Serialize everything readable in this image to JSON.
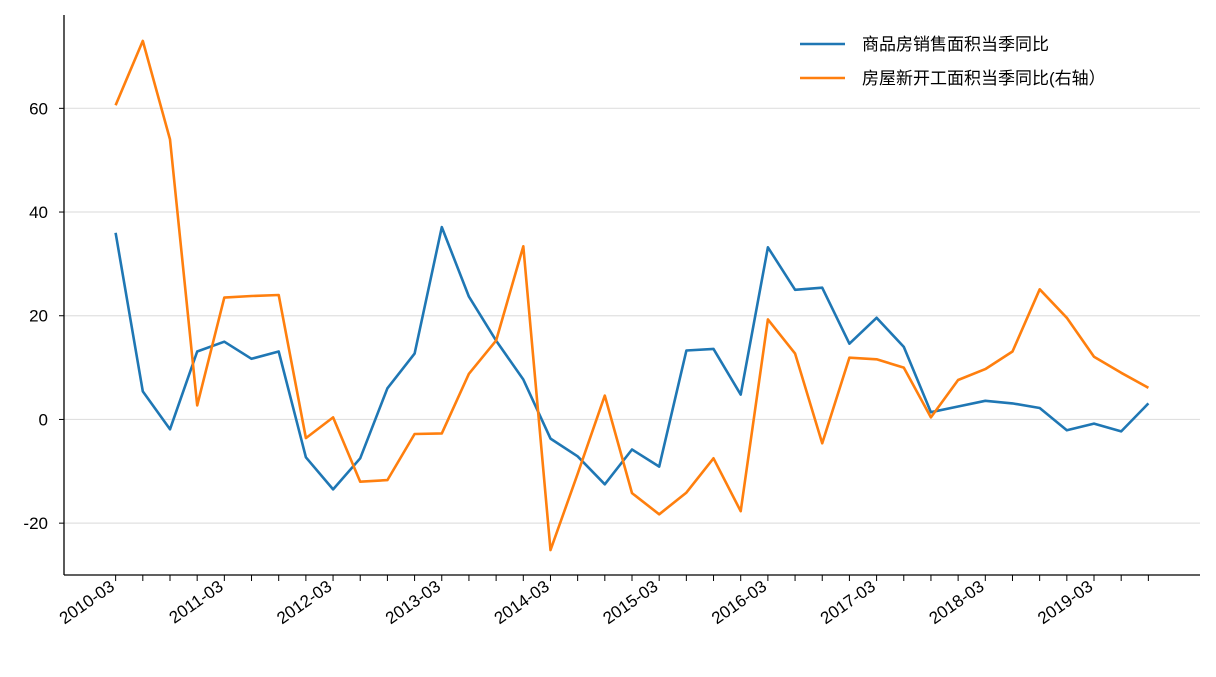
{
  "chart_data": {
    "type": "line",
    "categories": [
      "2010-03",
      null,
      null,
      null,
      "2011-03",
      null,
      null,
      null,
      "2012-03",
      null,
      null,
      null,
      "2013-03",
      null,
      null,
      null,
      "2014-03",
      null,
      null,
      null,
      "2015-03",
      null,
      null,
      null,
      "2016-03",
      null,
      null,
      null,
      "2017-03",
      null,
      null,
      null,
      "2018-03",
      null,
      null,
      null,
      "2019-03",
      null,
      null
    ],
    "series": [
      {
        "name": "商品房销售面积当季同比",
        "color": "#1f77b4",
        "values": [
          36,
          5.4,
          -1.9,
          13.1,
          15,
          11.7,
          13.1,
          -7.3,
          -13.5,
          -7.5,
          6,
          12.7,
          37.1,
          23.7,
          15.2,
          7.7,
          -3.7,
          -7.1,
          -12.5,
          -5.8,
          -9.1,
          13.3,
          13.6,
          4.8,
          33.2,
          25,
          25.4,
          14.6,
          19.6,
          14,
          1.4,
          2.5,
          3.6,
          3.1,
          2.2,
          -2.1,
          -0.8,
          -2.3,
          3.1
        ]
      },
      {
        "name": "房屋新开工面积当季同比(右轴）",
        "color": "#ff7f0e",
        "values": [
          60.6,
          73,
          54,
          2.7,
          23.5,
          23.8,
          24,
          -3.6,
          0.4,
          -12,
          -11.7,
          -2.8,
          -2.7,
          8.8,
          15.2,
          33.4,
          -25.2,
          -10.5,
          4.6,
          -14.2,
          -18.3,
          -14.1,
          -7.5,
          -17.7,
          19.3,
          12.7,
          -4.6,
          11.9,
          11.6,
          10,
          0.4,
          7.6,
          9.7,
          13.1,
          25.1,
          19.6,
          12.1,
          9,
          6.1
        ]
      }
    ],
    "ylim": [
      -30,
      78
    ],
    "yticks": [
      -20,
      0,
      20,
      40,
      60
    ],
    "grid": true,
    "legend": "upper right"
  }
}
